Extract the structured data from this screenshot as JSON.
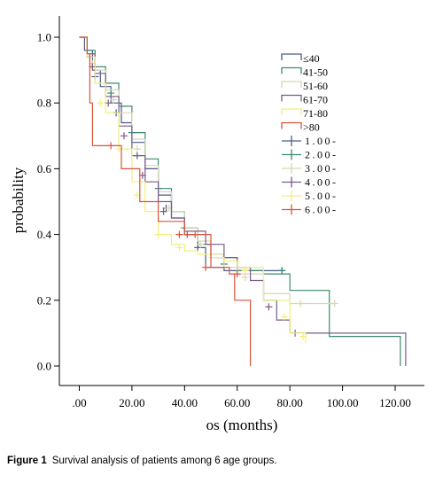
{
  "caption": {
    "label": "Figure 1",
    "text": "Survival analysis of patients among 6 age groups."
  },
  "chart_data": {
    "type": "line",
    "subtype": "kaplan-meier-step",
    "title": "",
    "xlabel": "os (months)",
    "ylabel": "probability",
    "xlim": [
      -8,
      132
    ],
    "ylim": [
      -0.06,
      1.06
    ],
    "x_ticks": [
      0,
      20,
      40,
      60,
      80,
      100,
      120
    ],
    "x_tick_labels": [
      ".00",
      "20.00",
      "40.00",
      "60.00",
      "80.00",
      "100.00",
      "120.00"
    ],
    "y_ticks": [
      0,
      0.2,
      0.4,
      0.6,
      0.8,
      1.0
    ],
    "y_tick_labels": [
      "0.0",
      "0.2",
      "0.4",
      "0.6",
      "0.8",
      "1.0"
    ],
    "grid": false,
    "legend_position": "top-right",
    "censored_legend": [
      "1.00-",
      "2.00-",
      "3.00-",
      "4.00-",
      "5.00-",
      "6.00-"
    ],
    "series": [
      {
        "name": "≤40",
        "color": "#4a5a8c",
        "x": [
          0,
          2,
          5,
          8,
          12,
          16,
          20,
          25,
          30,
          35,
          40,
          45,
          48,
          55,
          60,
          70,
          77
        ],
        "y": [
          1.0,
          0.96,
          0.9,
          0.85,
          0.8,
          0.74,
          0.68,
          0.6,
          0.52,
          0.45,
          0.4,
          0.36,
          0.3,
          0.29,
          0.29,
          0.29,
          0.29
        ],
        "censor_x": [
          6,
          14,
          22,
          33,
          45,
          77
        ],
        "censor_y": [
          0.88,
          0.77,
          0.64,
          0.48,
          0.36,
          0.29
        ]
      },
      {
        "name": "41-50",
        "color": "#3d8a6e",
        "x": [
          0,
          3,
          6,
          10,
          15,
          20,
          25,
          30,
          35,
          40,
          45,
          50,
          60,
          70,
          80,
          95,
          122
        ],
        "y": [
          1.0,
          0.96,
          0.91,
          0.86,
          0.79,
          0.71,
          0.63,
          0.54,
          0.47,
          0.42,
          0.37,
          0.33,
          0.29,
          0.28,
          0.23,
          0.09,
          0.0
        ],
        "censor_x": [
          4,
          12,
          20,
          30,
          40,
          55,
          77
        ],
        "censor_y": [
          0.94,
          0.83,
          0.71,
          0.54,
          0.42,
          0.31,
          0.29
        ]
      },
      {
        "name": "51-60",
        "color": "#d9d6b2",
        "x": [
          0,
          3,
          6,
          10,
          15,
          20,
          25,
          30,
          35,
          40,
          45,
          50,
          55,
          60,
          70,
          80,
          97
        ],
        "y": [
          1.0,
          0.95,
          0.9,
          0.84,
          0.77,
          0.69,
          0.61,
          0.53,
          0.47,
          0.42,
          0.38,
          0.34,
          0.3,
          0.28,
          0.22,
          0.19,
          0.19
        ],
        "censor_x": [
          5,
          13,
          22,
          34,
          46,
          63,
          84,
          97
        ],
        "censor_y": [
          0.92,
          0.81,
          0.66,
          0.48,
          0.37,
          0.27,
          0.19,
          0.19
        ]
      },
      {
        "name": "61-70",
        "color": "#7a5c88",
        "x": [
          0,
          3,
          6,
          10,
          15,
          20,
          25,
          30,
          35,
          40,
          48,
          55,
          60,
          65,
          70,
          75,
          80,
          124
        ],
        "y": [
          1.0,
          0.95,
          0.89,
          0.82,
          0.73,
          0.64,
          0.56,
          0.5,
          0.45,
          0.41,
          0.37,
          0.33,
          0.3,
          0.26,
          0.2,
          0.14,
          0.1,
          0.0
        ],
        "censor_x": [
          5,
          11,
          17,
          24,
          32,
          41,
          55,
          72,
          82
        ],
        "censor_y": [
          0.91,
          0.8,
          0.7,
          0.58,
          0.47,
          0.4,
          0.33,
          0.18,
          0.1
        ]
      },
      {
        "name": "71-80",
        "color": "#f2ef7a",
        "x": [
          0,
          3,
          6,
          10,
          15,
          20,
          25,
          30,
          35,
          40,
          45,
          50,
          55,
          60,
          70,
          80,
          86
        ],
        "y": [
          1.0,
          0.94,
          0.86,
          0.77,
          0.66,
          0.56,
          0.47,
          0.4,
          0.37,
          0.35,
          0.34,
          0.33,
          0.32,
          0.3,
          0.2,
          0.1,
          0.07
        ],
        "censor_x": [
          8,
          15,
          22,
          30,
          38,
          50,
          63,
          78,
          85
        ],
        "censor_y": [
          0.8,
          0.66,
          0.52,
          0.4,
          0.36,
          0.33,
          0.29,
          0.15,
          0.09
        ]
      },
      {
        "name": ">80",
        "color": "#d9533a",
        "x": [
          0,
          3,
          4,
          5,
          12,
          16,
          23,
          30,
          40,
          45,
          50,
          57,
          59,
          65
        ],
        "y": [
          1.0,
          0.95,
          0.8,
          0.67,
          0.67,
          0.6,
          0.5,
          0.44,
          0.4,
          0.4,
          0.3,
          0.28,
          0.2,
          0.0
        ],
        "censor_x": [
          12,
          38,
          44,
          48,
          60
        ],
        "censor_y": [
          0.67,
          0.4,
          0.4,
          0.3,
          0.28
        ]
      }
    ]
  }
}
